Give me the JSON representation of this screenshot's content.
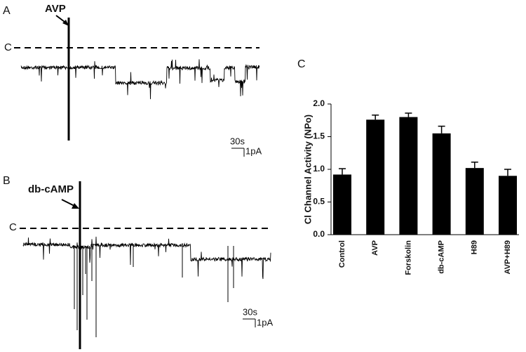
{
  "panel_a": {
    "label": "A",
    "stimulus": "AVP",
    "closed_label": "C",
    "time_scale": "30s",
    "current_scale": "1pA"
  },
  "panel_b": {
    "label": "B",
    "stimulus": "db-cAMP",
    "closed_label": "C",
    "time_scale": "30s",
    "current_scale": "1pA"
  },
  "chart_data": {
    "type": "bar",
    "panel_label": "C",
    "y_label": "Cl Channel Activity (NPo)",
    "categories": [
      "Control",
      "AVP",
      "Forskolin",
      "db-cAMP",
      "H89",
      "AVP+H89"
    ],
    "values": [
      0.92,
      1.76,
      1.8,
      1.55,
      1.02,
      0.9
    ],
    "errors": [
      0.09,
      0.07,
      0.06,
      0.11,
      0.09,
      0.1
    ],
    "color": "#000000",
    "ylim": [
      0,
      2
    ],
    "yticks": [
      {
        "value": 0,
        "label": "0.0"
      },
      {
        "value": 0.5,
        "label": "0.5"
      },
      {
        "value": 1,
        "label": "1.0"
      },
      {
        "value": 1.5,
        "label": "1.5"
      },
      {
        "value": 2,
        "label": "2.0"
      }
    ]
  }
}
